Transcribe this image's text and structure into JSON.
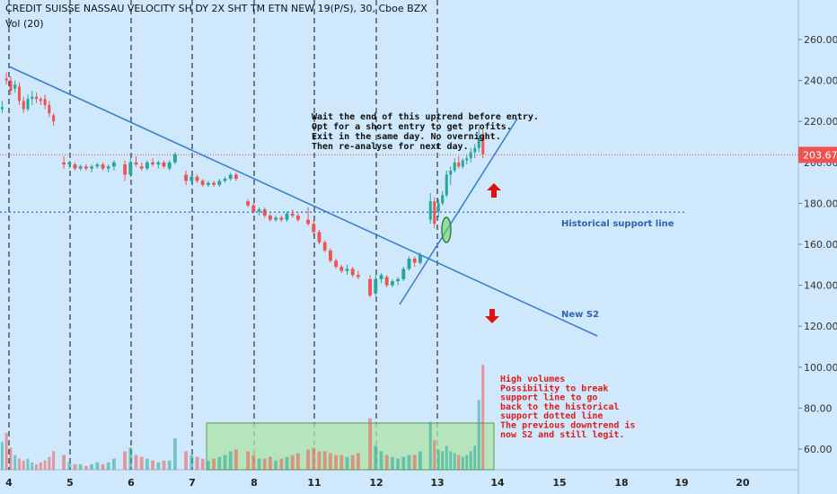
{
  "header": {
    "title": "CREDIT SUISSE NASSAU VELOCITY SH DY 2X SHT TM ETN NEW 19(P/S), 30, Cboe BZX",
    "volume_label": "Vol (20)"
  },
  "colors": {
    "background": "#cfe8fb",
    "up": "#26a69a",
    "down": "#ef5350",
    "trendline": "#3d7fd0",
    "annotation_text": "#111111",
    "red_note": "#e01b1b",
    "support_label": "#2f62b0"
  },
  "chart_data": {
    "type": "candlestick",
    "y_axis": {
      "ticks": [
        60,
        80,
        100,
        120,
        140,
        160,
        180,
        200,
        220,
        240,
        260
      ],
      "ylim": [
        50,
        268
      ],
      "side": "right"
    },
    "x_axis": {
      "ticks": [
        "4",
        "5",
        "6",
        "7",
        "8",
        "11",
        "12",
        "13",
        "14",
        "15",
        "18",
        "19",
        "20"
      ],
      "day_separators": [
        "4",
        "5",
        "6",
        "7",
        "8",
        "11",
        "12",
        "13"
      ]
    },
    "last_price": "203.67",
    "last_price_value": 203.67,
    "historical_support_value": 175.7,
    "candles": [
      {
        "d": "4",
        "o": 226,
        "h": 230,
        "l": 224,
        "c": 227,
        "v": 65
      },
      {
        "d": "4",
        "o": 241,
        "h": 244,
        "l": 238,
        "c": 240,
        "v": 70
      },
      {
        "d": "4",
        "o": 240,
        "h": 242,
        "l": 233,
        "c": 235,
        "v": 62
      },
      {
        "d": "4",
        "o": 236,
        "h": 240,
        "l": 234,
        "c": 238,
        "v": 58
      },
      {
        "d": "4",
        "o": 237,
        "h": 239,
        "l": 228,
        "c": 230,
        "v": 56
      },
      {
        "d": "4",
        "o": 230,
        "h": 232,
        "l": 224,
        "c": 226,
        "v": 55
      },
      {
        "d": "4",
        "o": 226,
        "h": 233,
        "l": 225,
        "c": 231,
        "v": 56
      },
      {
        "d": "4",
        "o": 231,
        "h": 235,
        "l": 228,
        "c": 232,
        "v": 54
      },
      {
        "d": "4",
        "o": 232,
        "h": 234,
        "l": 229,
        "c": 231,
        "v": 53
      },
      {
        "d": "4",
        "o": 231,
        "h": 232,
        "l": 228,
        "c": 230,
        "v": 54
      },
      {
        "d": "4",
        "o": 231,
        "h": 233,
        "l": 226,
        "c": 228,
        "v": 55
      },
      {
        "d": "4",
        "o": 228,
        "h": 230,
        "l": 222,
        "c": 224,
        "v": 57
      },
      {
        "d": "4",
        "o": 223,
        "h": 224,
        "l": 218,
        "c": 220,
        "v": 60
      },
      {
        "d": "5",
        "o": 200,
        "h": 203,
        "l": 197,
        "c": 199,
        "v": 58
      },
      {
        "d": "5",
        "o": 199,
        "h": 201,
        "l": 197,
        "c": 200,
        "v": 54
      },
      {
        "d": "5",
        "o": 199,
        "h": 200,
        "l": 196,
        "c": 197,
        "v": 53
      },
      {
        "d": "5",
        "o": 197,
        "h": 199,
        "l": 196,
        "c": 198,
        "v": 53
      },
      {
        "d": "5",
        "o": 198,
        "h": 199,
        "l": 196,
        "c": 197,
        "v": 52
      },
      {
        "d": "5",
        "o": 197,
        "h": 199,
        "l": 195,
        "c": 198,
        "v": 53
      },
      {
        "d": "5",
        "o": 198,
        "h": 200,
        "l": 197,
        "c": 199,
        "v": 54
      },
      {
        "d": "5",
        "o": 199,
        "h": 200,
        "l": 196,
        "c": 197,
        "v": 53
      },
      {
        "d": "5",
        "o": 197,
        "h": 199,
        "l": 195,
        "c": 198,
        "v": 54
      },
      {
        "d": "5",
        "o": 198,
        "h": 201,
        "l": 196,
        "c": 200,
        "v": 56
      },
      {
        "d": "6",
        "o": 199,
        "h": 201,
        "l": 191,
        "c": 194,
        "v": 60
      },
      {
        "d": "6",
        "o": 194,
        "h": 202,
        "l": 193,
        "c": 200,
        "v": 62
      },
      {
        "d": "6",
        "o": 200,
        "h": 203,
        "l": 198,
        "c": 199,
        "v": 58
      },
      {
        "d": "6",
        "o": 198,
        "h": 200,
        "l": 196,
        "c": 197,
        "v": 57
      },
      {
        "d": "6",
        "o": 197,
        "h": 201,
        "l": 196,
        "c": 200,
        "v": 56
      },
      {
        "d": "6",
        "o": 200,
        "h": 202,
        "l": 198,
        "c": 199,
        "v": 55
      },
      {
        "d": "6",
        "o": 199,
        "h": 201,
        "l": 197,
        "c": 200,
        "v": 54
      },
      {
        "d": "6",
        "o": 200,
        "h": 201,
        "l": 197,
        "c": 198,
        "v": 55
      },
      {
        "d": "6",
        "o": 197,
        "h": 201,
        "l": 196,
        "c": 200,
        "v": 55
      },
      {
        "d": "6",
        "o": 200,
        "h": 205,
        "l": 199,
        "c": 204,
        "v": 67
      },
      {
        "d": "7",
        "o": 194,
        "h": 196,
        "l": 189,
        "c": 191,
        "v": 60
      },
      {
        "d": "7",
        "o": 191,
        "h": 194,
        "l": 190,
        "c": 193,
        "v": 58
      },
      {
        "d": "7",
        "o": 193,
        "h": 194,
        "l": 190,
        "c": 191,
        "v": 57
      },
      {
        "d": "7",
        "o": 191,
        "h": 192,
        "l": 188,
        "c": 189,
        "v": 56
      },
      {
        "d": "7",
        "o": 189,
        "h": 191,
        "l": 188,
        "c": 190,
        "v": 55
      },
      {
        "d": "7",
        "o": 190,
        "h": 191,
        "l": 188,
        "c": 189,
        "v": 56
      },
      {
        "d": "7",
        "o": 189,
        "h": 192,
        "l": 188,
        "c": 191,
        "v": 57
      },
      {
        "d": "7",
        "o": 191,
        "h": 193,
        "l": 190,
        "c": 192,
        "v": 58
      },
      {
        "d": "7",
        "o": 192,
        "h": 195,
        "l": 191,
        "c": 194,
        "v": 60
      },
      {
        "d": "7",
        "o": 194,
        "h": 195,
        "l": 191,
        "c": 192,
        "v": 61
      },
      {
        "d": "8",
        "o": 181,
        "h": 182,
        "l": 178,
        "c": 179,
        "v": 60
      },
      {
        "d": "8",
        "o": 179,
        "h": 180,
        "l": 175,
        "c": 176,
        "v": 58
      },
      {
        "d": "8",
        "o": 176,
        "h": 178,
        "l": 174,
        "c": 177,
        "v": 56
      },
      {
        "d": "8",
        "o": 177,
        "h": 178,
        "l": 173,
        "c": 174,
        "v": 56
      },
      {
        "d": "8",
        "o": 174,
        "h": 175,
        "l": 171,
        "c": 172,
        "v": 57
      },
      {
        "d": "8",
        "o": 172,
        "h": 174,
        "l": 171,
        "c": 173,
        "v": 55
      },
      {
        "d": "8",
        "o": 173,
        "h": 174,
        "l": 171,
        "c": 172,
        "v": 56
      },
      {
        "d": "8",
        "o": 172,
        "h": 176,
        "l": 171,
        "c": 175,
        "v": 57
      },
      {
        "d": "8",
        "o": 175,
        "h": 177,
        "l": 173,
        "c": 174,
        "v": 58
      },
      {
        "d": "8",
        "o": 174,
        "h": 175,
        "l": 171,
        "c": 172,
        "v": 59
      },
      {
        "d": "11",
        "o": 172,
        "h": 178,
        "l": 169,
        "c": 170,
        "v": 61
      },
      {
        "d": "11",
        "o": 170,
        "h": 172,
        "l": 164,
        "c": 166,
        "v": 62
      },
      {
        "d": "11",
        "o": 166,
        "h": 167,
        "l": 160,
        "c": 161,
        "v": 60
      },
      {
        "d": "11",
        "o": 161,
        "h": 162,
        "l": 156,
        "c": 157,
        "v": 60
      },
      {
        "d": "11",
        "o": 157,
        "h": 158,
        "l": 151,
        "c": 152,
        "v": 59
      },
      {
        "d": "11",
        "o": 152,
        "h": 153,
        "l": 148,
        "c": 149,
        "v": 58
      },
      {
        "d": "11",
        "o": 149,
        "h": 150,
        "l": 146,
        "c": 147,
        "v": 58
      },
      {
        "d": "11",
        "o": 147,
        "h": 150,
        "l": 145,
        "c": 148,
        "v": 57
      },
      {
        "d": "11",
        "o": 148,
        "h": 149,
        "l": 144,
        "c": 145,
        "v": 58
      },
      {
        "d": "11",
        "o": 145,
        "h": 147,
        "l": 143,
        "c": 144,
        "v": 59
      },
      {
        "d": "12",
        "o": 143,
        "h": 145,
        "l": 134,
        "c": 135,
        "v": 78
      },
      {
        "d": "12",
        "o": 136,
        "h": 145,
        "l": 135,
        "c": 143,
        "v": 63
      },
      {
        "d": "12",
        "o": 143,
        "h": 146,
        "l": 141,
        "c": 145,
        "v": 60
      },
      {
        "d": "12",
        "o": 144,
        "h": 145,
        "l": 139,
        "c": 140,
        "v": 58
      },
      {
        "d": "12",
        "o": 140,
        "h": 143,
        "l": 139,
        "c": 142,
        "v": 57
      },
      {
        "d": "12",
        "o": 142,
        "h": 144,
        "l": 140,
        "c": 143,
        "v": 56
      },
      {
        "d": "12",
        "o": 143,
        "h": 149,
        "l": 142,
        "c": 148,
        "v": 57
      },
      {
        "d": "12",
        "o": 148,
        "h": 154,
        "l": 147,
        "c": 153,
        "v": 58
      },
      {
        "d": "12",
        "o": 153,
        "h": 154,
        "l": 149,
        "c": 151,
        "v": 58
      },
      {
        "d": "12",
        "o": 151,
        "h": 156,
        "l": 150,
        "c": 155,
        "v": 60
      },
      {
        "d": "13",
        "o": 172,
        "h": 185,
        "l": 170,
        "c": 181,
        "v": 76
      },
      {
        "d": "13",
        "o": 181,
        "h": 183,
        "l": 168,
        "c": 170,
        "v": 66
      },
      {
        "d": "13",
        "o": 176,
        "h": 182,
        "l": 173,
        "c": 180,
        "v": 61
      },
      {
        "d": "13",
        "o": 180,
        "h": 186,
        "l": 179,
        "c": 184,
        "v": 60
      },
      {
        "d": "13",
        "o": 184,
        "h": 196,
        "l": 183,
        "c": 194,
        "v": 63
      },
      {
        "d": "13",
        "o": 194,
        "h": 198,
        "l": 189,
        "c": 196,
        "v": 60
      },
      {
        "d": "13",
        "o": 196,
        "h": 202,
        "l": 195,
        "c": 200,
        "v": 59
      },
      {
        "d": "13",
        "o": 200,
        "h": 203,
        "l": 197,
        "c": 198,
        "v": 58
      },
      {
        "d": "13",
        "o": 198,
        "h": 202,
        "l": 197,
        "c": 201,
        "v": 57
      },
      {
        "d": "13",
        "o": 201,
        "h": 204,
        "l": 199,
        "c": 202,
        "v": 58
      },
      {
        "d": "13",
        "o": 202,
        "h": 207,
        "l": 200,
        "c": 205,
        "v": 60
      },
      {
        "d": "13",
        "o": 205,
        "h": 209,
        "l": 202,
        "c": 207,
        "v": 63
      },
      {
        "d": "13",
        "o": 207,
        "h": 217,
        "l": 205,
        "c": 212,
        "v": 88
      },
      {
        "d": "13",
        "o": 213,
        "h": 216,
        "l": 202,
        "c": 204,
        "v": 107
      }
    ]
  },
  "annotations": {
    "strategy_note": [
      "Wait the end of this uptrend before entry.",
      "Opt for a short entry to get profits.",
      "Exit in the same day. No overnight.",
      "Then re-analyse for next day."
    ],
    "historical_support_label": "Historical support line",
    "new_s2_label": "New S2",
    "volume_note": [
      "High volumes",
      "Possibility to break",
      "support line to go",
      "back to the historical",
      "support dotted line",
      "The previous downtrend is",
      "now S2 and still legit."
    ]
  }
}
